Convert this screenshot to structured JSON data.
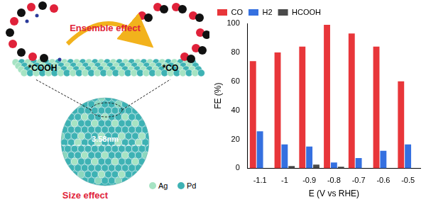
{
  "chart_data": {
    "type": "bar",
    "categories": [
      "-1.1",
      "-1",
      "-0.9",
      "-0.8",
      "-0.7",
      "-0.6",
      "-0.5"
    ],
    "x_label": "E (V vs RHE)",
    "y_label": "FE (%)",
    "series": [
      {
        "name": "CO",
        "color": "#e8363a",
        "values": [
          74,
          80,
          84,
          99,
          93,
          84,
          60
        ]
      },
      {
        "name": "H2",
        "color": "#3570e0",
        "values": [
          25.5,
          16.5,
          15,
          4,
          7,
          12,
          16.5
        ]
      },
      {
        "name": "HCOOH",
        "color": "#4a4a4a",
        "values": [
          null,
          1.5,
          2.5,
          1,
          null,
          null,
          null
        ]
      }
    ],
    "ylim": [
      0,
      100
    ],
    "yticks": [
      0,
      20,
      40,
      60,
      80,
      100
    ],
    "grid": false,
    "legend": "upper left"
  },
  "diagram": {
    "reactant": "*COOH",
    "product": "*CO",
    "top_effect": "Ensemble effect",
    "size": "3.58nm",
    "bottom_effect": "Size effect",
    "elements": [
      {
        "label": "Ag",
        "color": "#a6e3c3"
      },
      {
        "label": "Pd",
        "color": "#3eb2b4"
      }
    ]
  }
}
